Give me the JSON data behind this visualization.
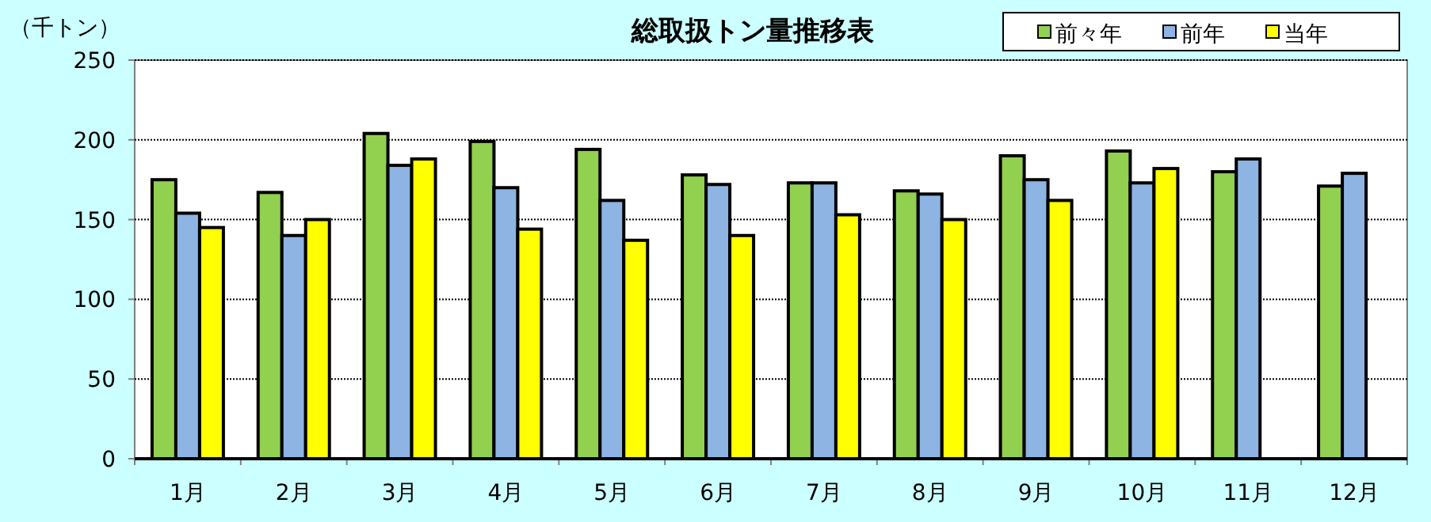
{
  "chart_data": {
    "type": "bar",
    "title": "総取扱トン量推移表",
    "ylabel": "（千トン）",
    "categories": [
      "1月",
      "2月",
      "3月",
      "4月",
      "5月",
      "6月",
      "7月",
      "8月",
      "9月",
      "10月",
      "11月",
      "12月"
    ],
    "series": [
      {
        "name": "前々年",
        "color": "#92d050",
        "values": [
          175,
          167,
          204,
          199,
          194,
          178,
          173,
          168,
          190,
          193,
          180,
          171
        ]
      },
      {
        "name": "前年",
        "color": "#8db4e2",
        "values": [
          154,
          140,
          184,
          170,
          162,
          172,
          173,
          166,
          175,
          173,
          188,
          179
        ]
      },
      {
        "name": "当年",
        "color": "#ffff00",
        "values": [
          145,
          150,
          188,
          144,
          137,
          140,
          153,
          150,
          162,
          182,
          null,
          null
        ]
      }
    ],
    "ylim": [
      0,
      250
    ],
    "yticks": [
      0,
      50,
      100,
      150,
      200,
      250
    ],
    "grid": "y",
    "legend": "top right"
  }
}
